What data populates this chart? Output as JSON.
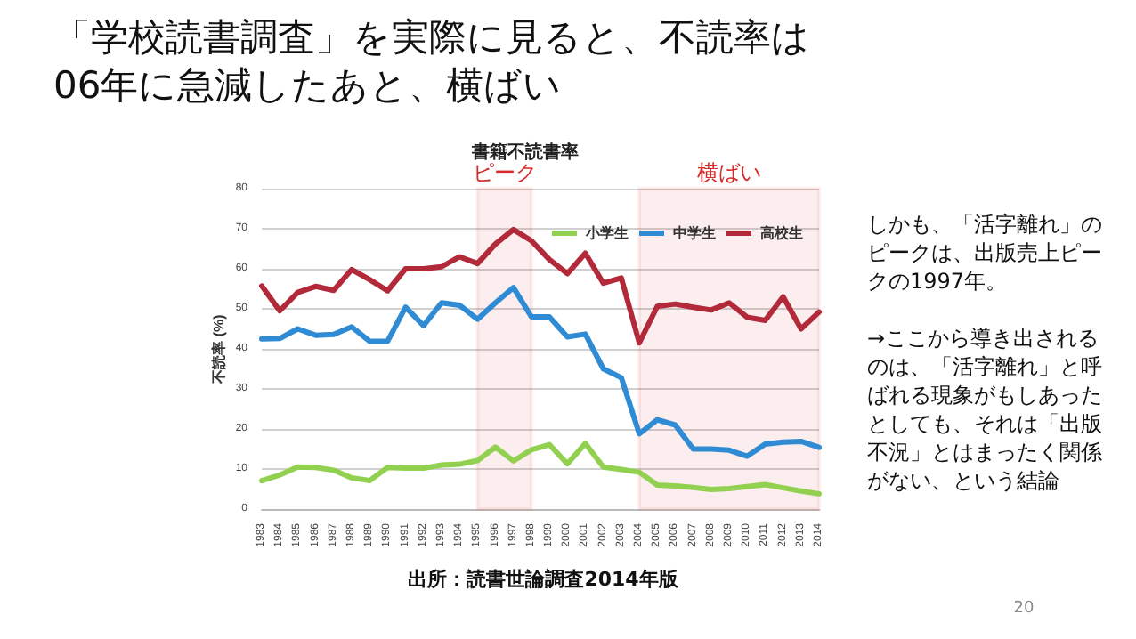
{
  "chart_data": {
    "type": "line",
    "title": "「学校読書調査」を実際に見ると、不読率は06年に急減したあと、横ばい",
    "subtitle": "書籍不読書率",
    "ylabel": "不読率 (%)",
    "categories": [
      "1983",
      "1984",
      "1985",
      "1986",
      "1987",
      "1988",
      "1989",
      "1990",
      "1991",
      "1992",
      "1993",
      "1994",
      "1995",
      "1996",
      "1997",
      "1998",
      "1999",
      "2000",
      "2001",
      "2002",
      "2003",
      "2004",
      "2005",
      "2006",
      "2007",
      "2008",
      "2009",
      "2010",
      "2011",
      "2012",
      "2013",
      "2014"
    ],
    "series": [
      {
        "name": "小学生",
        "color": "#92d050",
        "values": [
          7.1,
          8.5,
          10.5,
          10.4,
          9.7,
          7.8,
          7.1,
          10.4,
          10.2,
          10.2,
          11.0,
          11.2,
          12.1,
          15.5,
          12.0,
          14.8,
          16.1,
          11.3,
          16.4,
          10.5,
          9.9,
          9.2,
          6.0,
          5.8,
          5.4,
          4.9,
          5.1,
          5.6,
          6.1,
          5.3,
          4.5,
          3.8
        ]
      },
      {
        "name": "中学生",
        "color": "#2e8bd4",
        "values": [
          42.5,
          42.6,
          45.0,
          43.4,
          43.6,
          45.5,
          41.9,
          41.9,
          50.4,
          45.8,
          51.5,
          50.9,
          47.4,
          51.5,
          55.3,
          48.0,
          48.0,
          43.0,
          43.7,
          35.0,
          32.8,
          18.8,
          22.3,
          21.0,
          15.0,
          15.0,
          14.7,
          13.2,
          16.2,
          16.7,
          16.9,
          15.4
        ]
      },
      {
        "name": "高校生",
        "color": "#b22a3a",
        "values": [
          55.7,
          49.5,
          54.1,
          55.6,
          54.6,
          59.8,
          57.3,
          54.5,
          60.0,
          60.0,
          60.5,
          63.0,
          61.3,
          66.2,
          69.8,
          67.0,
          62.3,
          58.8,
          63.9,
          56.4,
          57.7,
          41.5,
          50.6,
          51.2,
          50.4,
          49.7,
          51.5,
          47.9,
          47.1,
          53.0,
          45.0,
          49.2
        ]
      }
    ],
    "ylim": [
      0,
      80
    ],
    "yticks": [
      0,
      10,
      20,
      30,
      40,
      50,
      60,
      70,
      80
    ],
    "grid": "y",
    "legend": "top right",
    "marker": "none",
    "line_style": "solid",
    "bands": [
      {
        "axis": "x",
        "from": "1995",
        "to": "1998",
        "label": "ピーク",
        "color": "#d62828"
      },
      {
        "axis": "x",
        "from": "2004",
        "to": "2014",
        "label": "横ばい",
        "color": "#d62828"
      }
    ],
    "annotations": [
      "しかも、「活字離れ」のピークは、出版売上ピークの1997年。\n\n→ここから導き出されるのは、「活字離れ」と呼ばれる現象がもしあったとしても、それは「出版不況」とはまったく関係がない、という結論",
      "出所：読書世論調査2014年版",
      "20"
    ]
  }
}
